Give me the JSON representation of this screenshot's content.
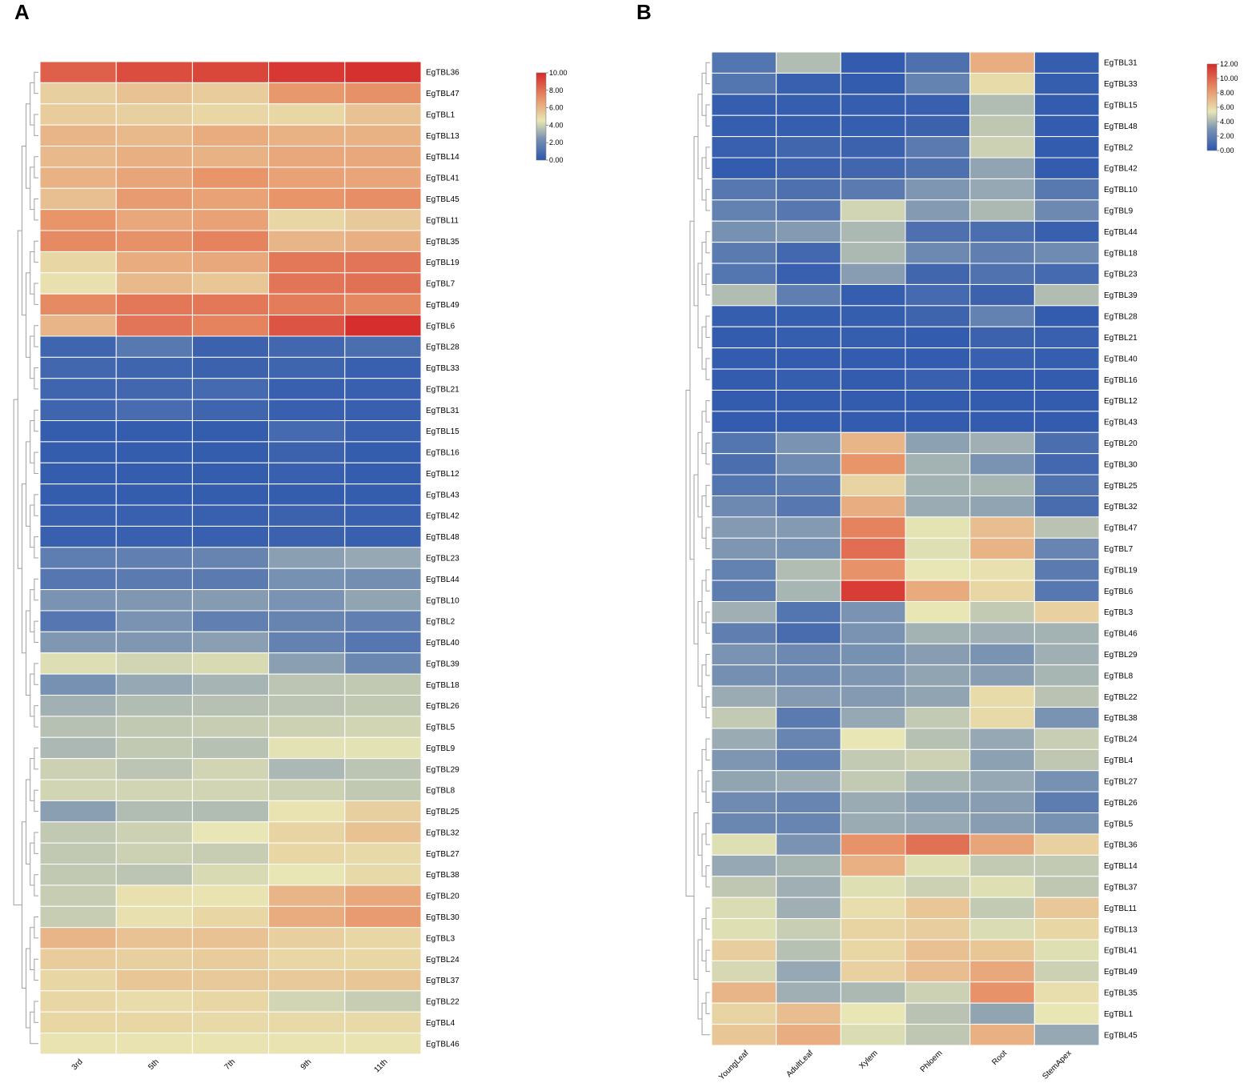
{
  "panels": [
    {
      "letter": "A",
      "colorbar": {
        "min": 0,
        "max": 10,
        "ticks": [
          "10.00",
          "8.00",
          "6.00",
          "4.00",
          "2.00",
          "0.00"
        ]
      },
      "chart_data": {
        "type": "heatmap",
        "title": "",
        "columns": [
          "3rd",
          "5th",
          "7th",
          "9th",
          "11th"
        ],
        "rows": [
          "EgTBL36",
          "EgTBL47",
          "EgTBL1",
          "EgTBL13",
          "EgTBL14",
          "EgTBL41",
          "EgTBL45",
          "EgTBL11",
          "EgTBL35",
          "EgTBL19",
          "EgTBL7",
          "EgTBL49",
          "EgTBL6",
          "EgTBL28",
          "EgTBL33",
          "EgTBL21",
          "EgTBL31",
          "EgTBL15",
          "EgTBL16",
          "EgTBL12",
          "EgTBL43",
          "EgTBL42",
          "EgTBL48",
          "EgTBL23",
          "EgTBL44",
          "EgTBL10",
          "EgTBL2",
          "EgTBL40",
          "EgTBL39",
          "EgTBL18",
          "EgTBL26",
          "EgTBL5",
          "EgTBL9",
          "EgTBL29",
          "EgTBL8",
          "EgTBL25",
          "EgTBL32",
          "EgTBL27",
          "EgTBL38",
          "EgTBL20",
          "EgTBL30",
          "EgTBL3",
          "EgTBL24",
          "EgTBL37",
          "EgTBL22",
          "EgTBL4",
          "EgTBL46"
        ],
        "values": [
          [
            8.5,
            9.0,
            9.2,
            9.6,
            9.8
          ],
          [
            5.2,
            5.6,
            5.3,
            6.9,
            7.1
          ],
          [
            5.3,
            5.2,
            5.0,
            5.0,
            5.6
          ],
          [
            6.0,
            5.9,
            6.3,
            6.1,
            6.1
          ],
          [
            5.9,
            6.2,
            6.1,
            6.4,
            6.4
          ],
          [
            6.1,
            6.5,
            7.0,
            6.6,
            6.5
          ],
          [
            5.7,
            6.8,
            6.6,
            7.0,
            7.2
          ],
          [
            7.0,
            6.4,
            6.6,
            5.0,
            5.4
          ],
          [
            7.3,
            7.1,
            7.5,
            6.0,
            6.2
          ],
          [
            5.0,
            6.3,
            6.4,
            7.8,
            7.9
          ],
          [
            4.7,
            5.9,
            5.5,
            7.9,
            8.0
          ],
          [
            7.3,
            7.8,
            7.8,
            7.7,
            7.4
          ],
          [
            6.0,
            7.9,
            7.5,
            8.8,
            9.9
          ],
          [
            0.6,
            1.4,
            0.5,
            0.7,
            1.0
          ],
          [
            0.7,
            0.6,
            0.5,
            0.6,
            0.4
          ],
          [
            0.6,
            0.7,
            0.8,
            0.4,
            0.4
          ],
          [
            0.6,
            0.9,
            0.6,
            0.4,
            0.4
          ],
          [
            0.3,
            0.3,
            0.3,
            0.8,
            0.4
          ],
          [
            0.3,
            0.3,
            0.3,
            0.5,
            0.3
          ],
          [
            0.3,
            0.3,
            0.3,
            0.4,
            0.3
          ],
          [
            0.3,
            0.3,
            0.3,
            0.3,
            0.3
          ],
          [
            0.4,
            0.4,
            0.4,
            0.5,
            0.4
          ],
          [
            0.4,
            0.4,
            0.4,
            0.5,
            0.4
          ],
          [
            1.6,
            1.7,
            1.9,
            2.8,
            3.0
          ],
          [
            1.3,
            1.5,
            1.5,
            2.4,
            2.3
          ],
          [
            2.5,
            2.6,
            2.7,
            2.5,
            2.9
          ],
          [
            1.3,
            2.5,
            1.7,
            1.9,
            1.7
          ],
          [
            2.6,
            2.6,
            2.8,
            1.8,
            1.3
          ],
          [
            4.3,
            4.1,
            4.2,
            2.8,
            2.0
          ],
          [
            2.4,
            3.0,
            3.3,
            3.7,
            3.8
          ],
          [
            3.2,
            3.5,
            3.6,
            3.7,
            3.8
          ],
          [
            3.6,
            3.8,
            3.9,
            4.0,
            4.1
          ],
          [
            3.4,
            3.8,
            3.6,
            4.4,
            4.4
          ],
          [
            4.0,
            3.7,
            4.1,
            3.4,
            3.7
          ],
          [
            4.1,
            4.1,
            4.1,
            4.0,
            3.8
          ],
          [
            2.8,
            3.5,
            3.5,
            4.6,
            5.2
          ],
          [
            3.8,
            4.0,
            4.5,
            5.1,
            5.6
          ],
          [
            3.8,
            4.0,
            3.9,
            5.0,
            4.9
          ],
          [
            3.8,
            3.7,
            4.2,
            4.5,
            4.9
          ],
          [
            3.9,
            4.7,
            4.6,
            6.0,
            6.4
          ],
          [
            3.9,
            4.7,
            5.0,
            6.3,
            6.8
          ],
          [
            6.0,
            5.6,
            5.6,
            5.2,
            5.0
          ],
          [
            5.3,
            5.2,
            5.3,
            5.0,
            5.0
          ],
          [
            5.0,
            5.5,
            5.4,
            5.4,
            5.5
          ],
          [
            5.0,
            4.8,
            5.0,
            4.1,
            3.9
          ],
          [
            5.0,
            5.0,
            4.9,
            4.9,
            4.9
          ],
          [
            4.6,
            4.6,
            4.6,
            4.6,
            4.6
          ]
        ]
      }
    },
    {
      "letter": "B",
      "colorbar": {
        "min": 0,
        "max": 12,
        "ticks": [
          "12.00",
          "10.00",
          "8.00",
          "6.00",
          "4.00",
          "2.00",
          "0.00"
        ]
      },
      "chart_data": {
        "type": "heatmap",
        "title": "",
        "columns": [
          "YoungLeaf",
          "AdultLeaf",
          "Xylem",
          "Phloem",
          "Root",
          "StemApex"
        ],
        "rows": [
          "EgTBL31",
          "EgTBL33",
          "EgTBL15",
          "EgTBL48",
          "EgTBL2",
          "EgTBL42",
          "EgTBL10",
          "EgTBL9",
          "EgTBL44",
          "EgTBL18",
          "EgTBL23",
          "EgTBL39",
          "EgTBL28",
          "EgTBL21",
          "EgTBL40",
          "EgTBL16",
          "EgTBL12",
          "EgTBL43",
          "EgTBL20",
          "EgTBL30",
          "EgTBL25",
          "EgTBL32",
          "EgTBL47",
          "EgTBL7",
          "EgTBL19",
          "EgTBL6",
          "EgTBL3",
          "EgTBL46",
          "EgTBL29",
          "EgTBL8",
          "EgTBL22",
          "EgTBL38",
          "EgTBL24",
          "EgTBL4",
          "EgTBL27",
          "EgTBL26",
          "EgTBL5",
          "EgTBL36",
          "EgTBL14",
          "EgTBL37",
          "EgTBL11",
          "EgTBL13",
          "EgTBL41",
          "EgTBL49",
          "EgTBL35",
          "EgTBL1",
          "EgTBL45"
        ],
        "values": [
          [
            1.5,
            4.2,
            0.3,
            1.3,
            7.5,
            0.4
          ],
          [
            1.5,
            0.5,
            0.3,
            2.2,
            5.8,
            0.4
          ],
          [
            0.4,
            0.4,
            0.4,
            0.5,
            4.2,
            0.3
          ],
          [
            0.4,
            0.4,
            0.4,
            0.6,
            4.5,
            0.3
          ],
          [
            0.5,
            0.8,
            0.6,
            1.8,
            4.8,
            0.3
          ],
          [
            0.3,
            0.6,
            0.8,
            1.3,
            3.5,
            0.3
          ],
          [
            1.6,
            1.3,
            1.8,
            3.1,
            3.6,
            1.7
          ],
          [
            2.1,
            1.6,
            4.9,
            3.2,
            4.1,
            2.5
          ],
          [
            2.9,
            3.2,
            4.1,
            1.3,
            1.2,
            0.5
          ],
          [
            1.8,
            0.9,
            4.1,
            2.5,
            2.0,
            2.6
          ],
          [
            1.5,
            0.5,
            3.3,
            0.8,
            1.4,
            1.0
          ],
          [
            4.2,
            2.0,
            0.4,
            1.0,
            0.6,
            4.2
          ],
          [
            0.4,
            0.4,
            0.4,
            0.7,
            2.1,
            0.3
          ],
          [
            0.3,
            0.4,
            0.4,
            0.3,
            0.6,
            0.5
          ],
          [
            0.3,
            0.3,
            0.3,
            0.3,
            0.5,
            0.4
          ],
          [
            0.3,
            0.4,
            0.3,
            0.5,
            0.3,
            0.3
          ],
          [
            0.3,
            0.3,
            0.3,
            0.3,
            0.3,
            0.3
          ],
          [
            0.3,
            0.3,
            0.3,
            0.3,
            0.3,
            0.3
          ],
          [
            1.5,
            3.0,
            7.2,
            3.4,
            3.8,
            1.2
          ],
          [
            1.2,
            2.6,
            8.4,
            3.9,
            3.0,
            0.9
          ],
          [
            1.5,
            1.9,
            6.1,
            3.9,
            4.0,
            1.4
          ],
          [
            2.5,
            1.6,
            7.5,
            3.7,
            3.5,
            1.1
          ],
          [
            3.2,
            3.2,
            9.0,
            5.3,
            6.9,
            4.4
          ],
          [
            3.1,
            2.9,
            9.7,
            5.2,
            7.3,
            2.3
          ],
          [
            2.1,
            4.2,
            8.5,
            5.4,
            5.6,
            1.8
          ],
          [
            1.9,
            4.0,
            11.4,
            7.6,
            6.0,
            1.6
          ],
          [
            3.8,
            1.5,
            3.0,
            5.4,
            4.6,
            6.2
          ],
          [
            2.0,
            1.1,
            3.0,
            3.9,
            3.8,
            3.9
          ],
          [
            3.0,
            2.5,
            2.9,
            3.3,
            3.0,
            3.8
          ],
          [
            2.8,
            2.6,
            3.1,
            3.5,
            3.3,
            4.0
          ],
          [
            3.7,
            3.2,
            3.2,
            3.5,
            5.8,
            4.4
          ],
          [
            4.6,
            1.8,
            3.6,
            4.6,
            5.9,
            3.0
          ],
          [
            3.7,
            2.3,
            5.4,
            4.3,
            3.6,
            4.7
          ],
          [
            3.1,
            2.1,
            4.6,
            4.8,
            3.4,
            4.5
          ],
          [
            3.5,
            3.7,
            4.6,
            4.0,
            3.6,
            2.9
          ],
          [
            2.6,
            2.3,
            3.7,
            3.4,
            3.3,
            1.9
          ],
          [
            2.4,
            2.3,
            3.7,
            3.6,
            3.3,
            2.9
          ],
          [
            5.2,
            3.0,
            8.5,
            9.6,
            7.8,
            6.2
          ],
          [
            3.6,
            4.0,
            7.4,
            5.2,
            4.6,
            4.6
          ],
          [
            4.5,
            3.8,
            5.2,
            4.8,
            5.2,
            4.5
          ],
          [
            5.1,
            3.8,
            5.7,
            6.6,
            4.6,
            6.5
          ],
          [
            5.2,
            4.7,
            6.1,
            6.3,
            5.1,
            6.0
          ],
          [
            6.3,
            4.3,
            6.0,
            6.8,
            6.6,
            5.2
          ],
          [
            5.0,
            3.6,
            6.2,
            6.9,
            7.7,
            4.8
          ],
          [
            7.2,
            3.8,
            4.1,
            4.8,
            8.5,
            5.7
          ],
          [
            6.1,
            6.9,
            5.4,
            4.4,
            3.5,
            5.4
          ],
          [
            6.6,
            7.5,
            5.1,
            4.5,
            7.4,
            3.6
          ]
        ]
      }
    }
  ]
}
